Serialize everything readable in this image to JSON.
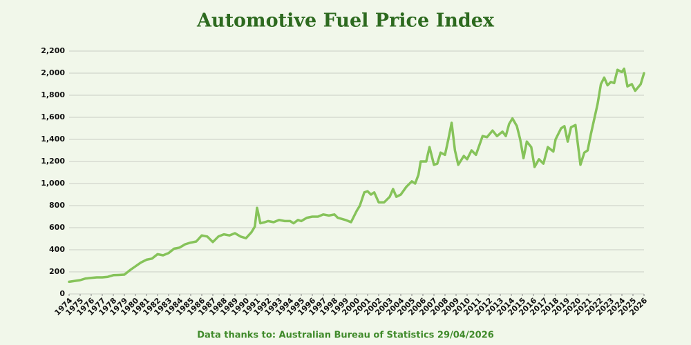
{
  "chart_data": {
    "type": "line",
    "title": "Automotive Fuel Price Index",
    "caption": "Data thanks to: Australian Bureau of Statistics 29/04/2026",
    "grid": true,
    "xlim": [
      1974,
      2026
    ],
    "xticks": [
      1974,
      1975,
      1976,
      1977,
      1978,
      1979,
      1980,
      1981,
      1982,
      1983,
      1984,
      1985,
      1986,
      1987,
      1988,
      1989,
      1990,
      1991,
      1992,
      1993,
      1994,
      1995,
      1996,
      1997,
      1998,
      1999,
      2000,
      2001,
      2002,
      2003,
      2004,
      2005,
      2006,
      2007,
      2008,
      2009,
      2010,
      2011,
      2012,
      2013,
      2014,
      2015,
      2016,
      2017,
      2018,
      2019,
      2020,
      2021,
      2022,
      2023,
      2024,
      2025,
      2026
    ],
    "ylim": [
      0,
      2200
    ],
    "yticks": [
      0,
      200,
      400,
      600,
      800,
      {
        "value": 1000,
        "label": "1,000"
      },
      {
        "value": 1200,
        "label": "1,200"
      },
      {
        "value": 1400,
        "label": "1,400"
      },
      {
        "value": 1600,
        "label": "1,600"
      },
      {
        "value": 1800,
        "label": "1,800"
      },
      {
        "value": 2000,
        "label": "2,000"
      },
      {
        "value": 2200,
        "label": "2,200"
      }
    ],
    "x": [
      1974,
      1975,
      1975.5,
      1976,
      1976.5,
      1977,
      1977.5,
      1978,
      1978.5,
      1979,
      1979.5,
      1980,
      1980.5,
      1981,
      1981.5,
      1982,
      1982.5,
      1983,
      1983.5,
      1984,
      1984.5,
      1985,
      1985.5,
      1986,
      1986.5,
      1987,
      1987.5,
      1988,
      1988.5,
      1989,
      1989.5,
      1990,
      1990.5,
      1990.8,
      1991,
      1991.3,
      1991.7,
      1992,
      1992.5,
      1993,
      1993.5,
      1994,
      1994.3,
      1994.7,
      1995,
      1995.5,
      1996,
      1996.5,
      1997,
      1997.5,
      1998,
      1998.3,
      1999,
      1999.5,
      2000,
      2000.3,
      2000.7,
      2001,
      2001.3,
      2001.6,
      2002,
      2002.5,
      2003,
      2003.3,
      2003.6,
      2004,
      2004.5,
      2005,
      2005.3,
      2005.6,
      2005.8,
      2006.3,
      2006.6,
      2007,
      2007.3,
      2007.6,
      2008,
      2008.3,
      2008.6,
      2008.9,
      2009.2,
      2009.7,
      2010,
      2010.4,
      2010.8,
      2011.4,
      2011.8,
      2012.3,
      2012.7,
      2013.2,
      2013.5,
      2013.8,
      2014.1,
      2014.5,
      2014.8,
      2015.1,
      2015.4,
      2015.8,
      2016.1,
      2016.5,
      2016.9,
      2017.3,
      2017.8,
      2018,
      2018.5,
      2018.8,
      2019.1,
      2019.4,
      2019.8,
      2020.25,
      2020.6,
      2020.9,
      2021.2,
      2021.8,
      2022.1,
      2022.4,
      2022.7,
      2023,
      2023.3,
      2023.6,
      2024,
      2024.2,
      2024.5,
      2024.9,
      2025.2,
      2025.7,
      2026
    ],
    "series": [
      {
        "color": "#86c35a",
        "values": [
          110,
          125,
          140,
          145,
          150,
          150,
          155,
          170,
          172,
          175,
          215,
          250,
          285,
          310,
          320,
          360,
          350,
          370,
          410,
          420,
          450,
          465,
          475,
          530,
          520,
          470,
          520,
          540,
          530,
          550,
          520,
          505,
          560,
          610,
          780,
          640,
          650,
          660,
          650,
          670,
          660,
          660,
          640,
          670,
          660,
          690,
          700,
          700,
          720,
          710,
          720,
          690,
          670,
          650,
          750,
          800,
          920,
          930,
          900,
          920,
          830,
          830,
          880,
          950,
          880,
          900,
          970,
          1020,
          1000,
          1080,
          1200,
          1200,
          1330,
          1170,
          1180,
          1280,
          1260,
          1400,
          1550,
          1300,
          1170,
          1250,
          1220,
          1300,
          1260,
          1430,
          1420,
          1480,
          1430,
          1470,
          1430,
          1540,
          1590,
          1520,
          1400,
          1230,
          1380,
          1330,
          1150,
          1220,
          1180,
          1330,
          1290,
          1400,
          1500,
          1520,
          1380,
          1510,
          1530,
          1170,
          1280,
          1300,
          1450,
          1720,
          1900,
          1960,
          1890,
          1920,
          1910,
          2030,
          2010,
          2040,
          1880,
          1900,
          1840,
          1900,
          2000
        ]
      }
    ]
  }
}
